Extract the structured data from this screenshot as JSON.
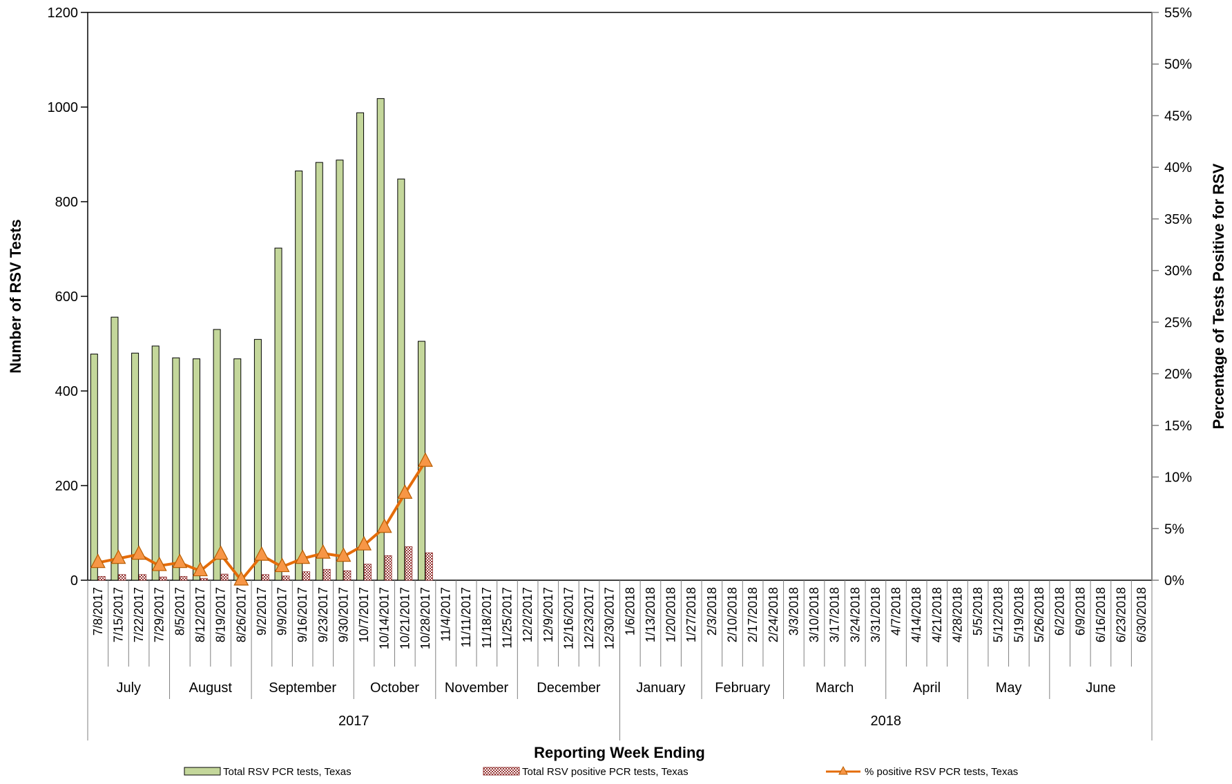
{
  "chart_data": {
    "type": "bar",
    "xlabel": "Reporting Week Ending",
    "ylabel": "Number of RSV Tests",
    "y2label": "Percentage of Tests Positive for RSV",
    "ylim": [
      0,
      1200
    ],
    "y_ticks": [
      "0",
      "200",
      "400",
      "600",
      "800",
      "1000",
      "1200"
    ],
    "y2lim": [
      0,
      55
    ],
    "y2_ticks": [
      "0%",
      "5%",
      "10%",
      "15%",
      "20%",
      "25%",
      "30%",
      "35%",
      "40%",
      "45%",
      "50%",
      "55%"
    ],
    "grid": false,
    "legend_position": "bottom",
    "categories": [
      "7/8/2017",
      "7/15/2017",
      "7/22/2017",
      "7/29/2017",
      "8/5/2017",
      "8/12/2017",
      "8/19/2017",
      "8/26/2017",
      "9/2/2017",
      "9/9/2017",
      "9/16/2017",
      "9/23/2017",
      "9/30/2017",
      "10/7/2017",
      "10/14/2017",
      "10/21/2017",
      "10/28/2017",
      "11/4/2017",
      "11/11/2017",
      "11/18/2017",
      "11/25/2017",
      "12/2/2017",
      "12/9/2017",
      "12/16/2017",
      "12/23/2017",
      "12/30/2017",
      "1/6/2018",
      "1/13/2018",
      "1/20/2018",
      "1/27/2018",
      "2/3/2018",
      "2/10/2018",
      "2/17/2018",
      "2/24/2018",
      "3/3/2018",
      "3/10/2018",
      "3/17/2018",
      "3/24/2018",
      "3/31/2018",
      "4/7/2018",
      "4/14/2018",
      "4/21/2018",
      "4/28/2018",
      "5/5/2018",
      "5/12/2018",
      "5/19/2018",
      "5/26/2018",
      "6/2/2018",
      "6/9/2018",
      "6/16/2018",
      "6/23/2018",
      "6/30/2018"
    ],
    "months": [
      {
        "label": "July",
        "start": 0,
        "count": 4
      },
      {
        "label": "August",
        "start": 4,
        "count": 4
      },
      {
        "label": "September",
        "start": 8,
        "count": 5
      },
      {
        "label": "October",
        "start": 13,
        "count": 4
      },
      {
        "label": "November",
        "start": 17,
        "count": 4
      },
      {
        "label": "December",
        "start": 21,
        "count": 5
      },
      {
        "label": "January",
        "start": 26,
        "count": 4
      },
      {
        "label": "February",
        "start": 30,
        "count": 4
      },
      {
        "label": "March",
        "start": 34,
        "count": 5
      },
      {
        "label": "April",
        "start": 39,
        "count": 4
      },
      {
        "label": "May",
        "start": 43,
        "count": 4
      },
      {
        "label": "June",
        "start": 47,
        "count": 5
      }
    ],
    "years": [
      {
        "label": "2017",
        "start": 0,
        "count": 26
      },
      {
        "label": "2018",
        "start": 26,
        "count": 26
      }
    ],
    "series": [
      {
        "name": "Total RSV PCR tests, Texas",
        "type": "bar",
        "axis": "left",
        "color": "#c4d79b",
        "values": [
          478,
          556,
          480,
          495,
          470,
          468,
          530,
          468,
          509,
          702,
          865,
          883,
          888,
          988,
          1018,
          848,
          505,
          null,
          null,
          null,
          null,
          null,
          null,
          null,
          null,
          null,
          null,
          null,
          null,
          null,
          null,
          null,
          null,
          null,
          null,
          null,
          null,
          null,
          null,
          null,
          null,
          null,
          null,
          null,
          null,
          null,
          null,
          null,
          null,
          null,
          null,
          null
        ]
      },
      {
        "name": "Total RSV positive PCR tests, Texas",
        "type": "bar",
        "axis": "left",
        "color": "#963634",
        "values": [
          8,
          12,
          12,
          7,
          8,
          4,
          13,
          0,
          12,
          9,
          18,
          23,
          20,
          34,
          52,
          71,
          58,
          null,
          null,
          null,
          null,
          null,
          null,
          null,
          null,
          null,
          null,
          null,
          null,
          null,
          null,
          null,
          null,
          null,
          null,
          null,
          null,
          null,
          null,
          null,
          null,
          null,
          null,
          null,
          null,
          null,
          null,
          null,
          null,
          null,
          null,
          null
        ]
      },
      {
        "name": "%  positive RSV PCR tests, Texas",
        "type": "line",
        "axis": "right",
        "color": "#e46c0a",
        "marker_color": "#f79646",
        "values": [
          1.7,
          2.1,
          2.5,
          1.4,
          1.7,
          0.9,
          2.5,
          0.0,
          2.4,
          1.3,
          2.1,
          2.6,
          2.3,
          3.4,
          5.1,
          8.4,
          11.5,
          null,
          null,
          null,
          null,
          null,
          null,
          null,
          null,
          null,
          null,
          null,
          null,
          null,
          null,
          null,
          null,
          null,
          null,
          null,
          null,
          null,
          null,
          null,
          null,
          null,
          null,
          null,
          null,
          null,
          null,
          null,
          null,
          null,
          null,
          null
        ]
      }
    ]
  }
}
